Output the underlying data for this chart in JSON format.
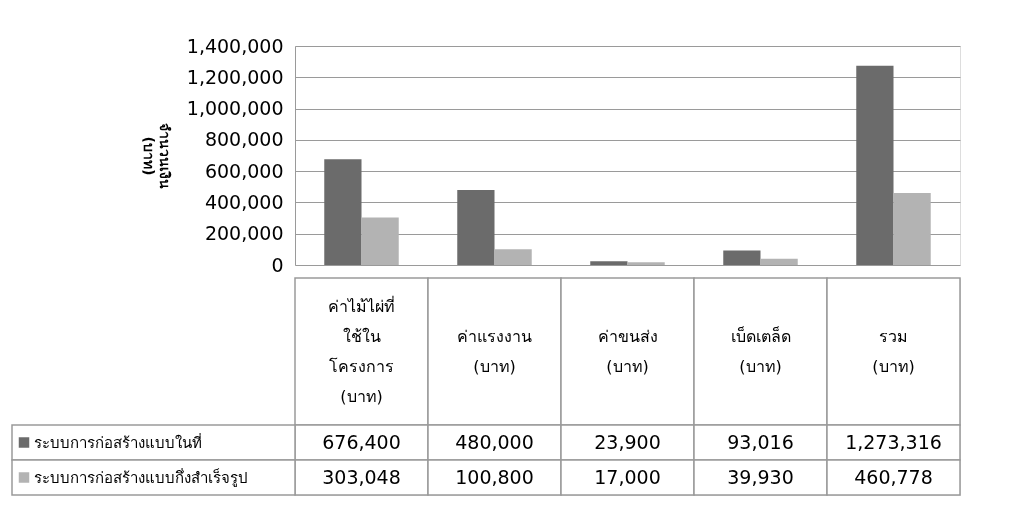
{
  "chart_data": {
    "type": "bar",
    "ylabel": "จำนวนเงิน (บาท)",
    "categories": [
      "ค่าไม้ไผ่ที่\nใช้ใน\nโครงการ\n(บาท)",
      "ค่าแรงงาน\n(บาท)",
      "ค่าขนส่ง\n(บาท)",
      "เบ็ดเตล็ด\n(บาท)",
      "รวม\n(บาท)"
    ],
    "series": [
      {
        "name": "ระบบการก่อสร้างแบบในที่",
        "color": "#6b6b6b",
        "values": [
          676400,
          480000,
          23900,
          93016,
          1273316
        ],
        "value_labels": [
          "676,400",
          "480,000",
          "23,900",
          "93,016",
          "1,273,316"
        ]
      },
      {
        "name": "ระบบการก่อสร้างแบบกึ่งสำเร็จรูป",
        "color": "#b3b3b3",
        "values": [
          303048,
          100800,
          17000,
          39930,
          460778
        ],
        "value_labels": [
          "303,048",
          "100,800",
          "17,000",
          "39,930",
          "460,778"
        ]
      }
    ],
    "ylim": [
      0,
      1400000
    ],
    "yticks": [
      0,
      {
        "value": 200000,
        "label": "200,000"
      },
      {
        "value": 400000,
        "label": "400,000"
      },
      {
        "value": 600000,
        "label": "600,000"
      },
      {
        "value": 800000,
        "label": "800,000"
      },
      {
        "value": 1000000,
        "label": "1,000,000"
      },
      {
        "value": 1200000,
        "label": "1,200,000"
      },
      {
        "value": 1400000,
        "label": "1,400,000"
      }
    ],
    "grid": "y",
    "legend": "bottom left"
  }
}
